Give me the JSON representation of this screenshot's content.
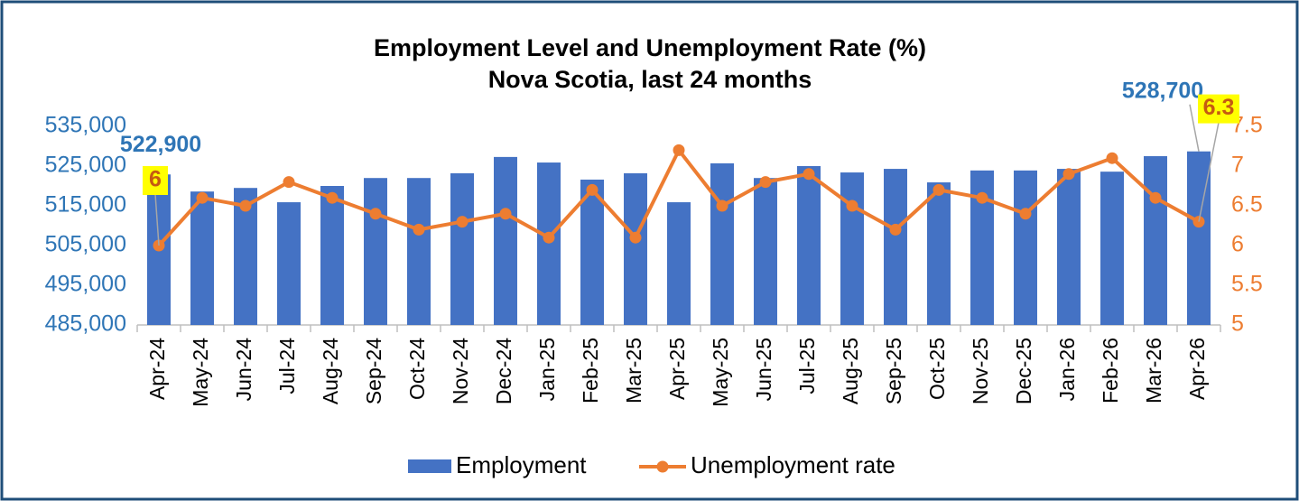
{
  "chart_data": {
    "type": "bar-line",
    "title": "Employment Level and Unemployment Rate (%)",
    "subtitle": "Nova Scotia, last 24 months",
    "categories": [
      "Apr-24",
      "May-24",
      "Jun-24",
      "Jul-24",
      "Aug-24",
      "Sep-24",
      "Oct-24",
      "Nov-24",
      "Dec-24",
      "Jan-25",
      "Feb-25",
      "Mar-25",
      "Apr-25",
      "May-25",
      "Jun-25",
      "Jul-25",
      "Aug-25",
      "Sep-25",
      "Oct-25",
      "Nov-25",
      "Dec-25",
      "Jan-26",
      "Feb-26",
      "Mar-26",
      "Apr-26"
    ],
    "series": [
      {
        "name": "Employment",
        "type": "bar",
        "color": "#4472c4",
        "values": [
          522900,
          518600,
          519500,
          515900,
          520000,
          522000,
          522000,
          523200,
          527300,
          525900,
          521600,
          523200,
          515900,
          525700,
          522000,
          525000,
          523400,
          524300,
          520900,
          523900,
          523900,
          524300,
          523600,
          527500,
          528700
        ],
        "value_labels": [
          "522,900",
          null,
          null,
          null,
          null,
          null,
          null,
          null,
          null,
          null,
          null,
          null,
          null,
          null,
          null,
          null,
          null,
          null,
          null,
          null,
          null,
          null,
          null,
          null,
          "528,700"
        ]
      },
      {
        "name": "Unemployment rate",
        "type": "line",
        "axis": "y2",
        "color": "#ed7d31",
        "values": [
          6,
          6.6,
          6.5,
          6.8,
          6.6,
          6.4,
          6.2,
          6.3,
          6.4,
          6.1,
          6.7,
          6.1,
          7.2,
          6.5,
          6.8,
          6.9,
          6.5,
          6.2,
          6.7,
          6.6,
          6.4,
          6.9,
          7.1,
          6.6,
          6.3
        ],
        "value_labels": [
          "6",
          null,
          null,
          null,
          null,
          null,
          null,
          null,
          null,
          null,
          null,
          null,
          null,
          null,
          null,
          null,
          null,
          null,
          null,
          null,
          null,
          null,
          null,
          null,
          "6.3"
        ]
      }
    ],
    "ylim": [
      485000,
      535000
    ],
    "yticks": [
      {
        "value": 485000,
        "label": "485,000"
      },
      {
        "value": 495000,
        "label": "495,000"
      },
      {
        "value": 505000,
        "label": "505,000"
      },
      {
        "value": 515000,
        "label": "515,000"
      },
      {
        "value": 525000,
        "label": "525,000"
      },
      {
        "value": 535000,
        "label": "535,000"
      }
    ],
    "y2lim": [
      5,
      7.5
    ],
    "y2ticks": [
      5,
      5.5,
      6,
      6.5,
      7,
      7.5
    ],
    "legend": "bottom"
  }
}
